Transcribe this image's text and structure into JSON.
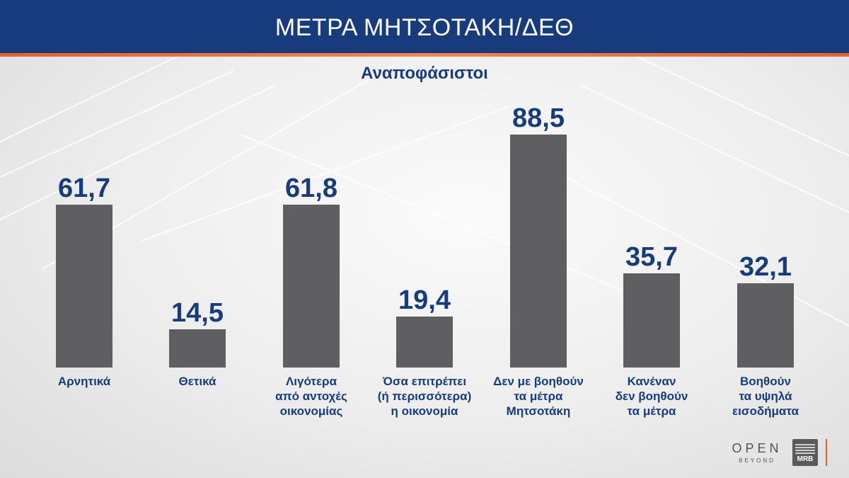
{
  "header": {
    "title": "ΜΕΤΡΑ ΜΗΤΣΟΤΑΚΗ/ΔΕΘ"
  },
  "colors": {
    "header_bg": "#173b7c",
    "accent_stripe": "#e9612a",
    "bar": "#5f5f61",
    "text": "#173b7c"
  },
  "chart_data": {
    "type": "bar",
    "title": "Αναποφάσιστοι",
    "categories": [
      "Αρνητικά",
      "Θετικά",
      "Λιγότερα\nαπό αντοχές\nοικονομίας",
      "Όσα επιτρέπει\n(ή περισσότερα)\nη οικονομία",
      "Δεν με βοηθούν\nτα μέτρα\nΜητσοτάκη",
      "Κανέναν\nδεν βοηθούν\nτα μέτρα",
      "Βοηθούν\nτα υψηλά\nεισοδήματα"
    ],
    "values": [
      61.7,
      14.5,
      61.8,
      19.4,
      88.5,
      35.7,
      32.1
    ],
    "value_labels": [
      "61,7",
      "14,5",
      "61,8",
      "19,4",
      "88,5",
      "35,7",
      "32,1"
    ],
    "ylim": [
      0,
      100
    ],
    "grid": false,
    "legend": "none"
  },
  "logos": {
    "open_main": "OPEN",
    "open_sub": "BEYOND",
    "mrb": "MRB"
  }
}
